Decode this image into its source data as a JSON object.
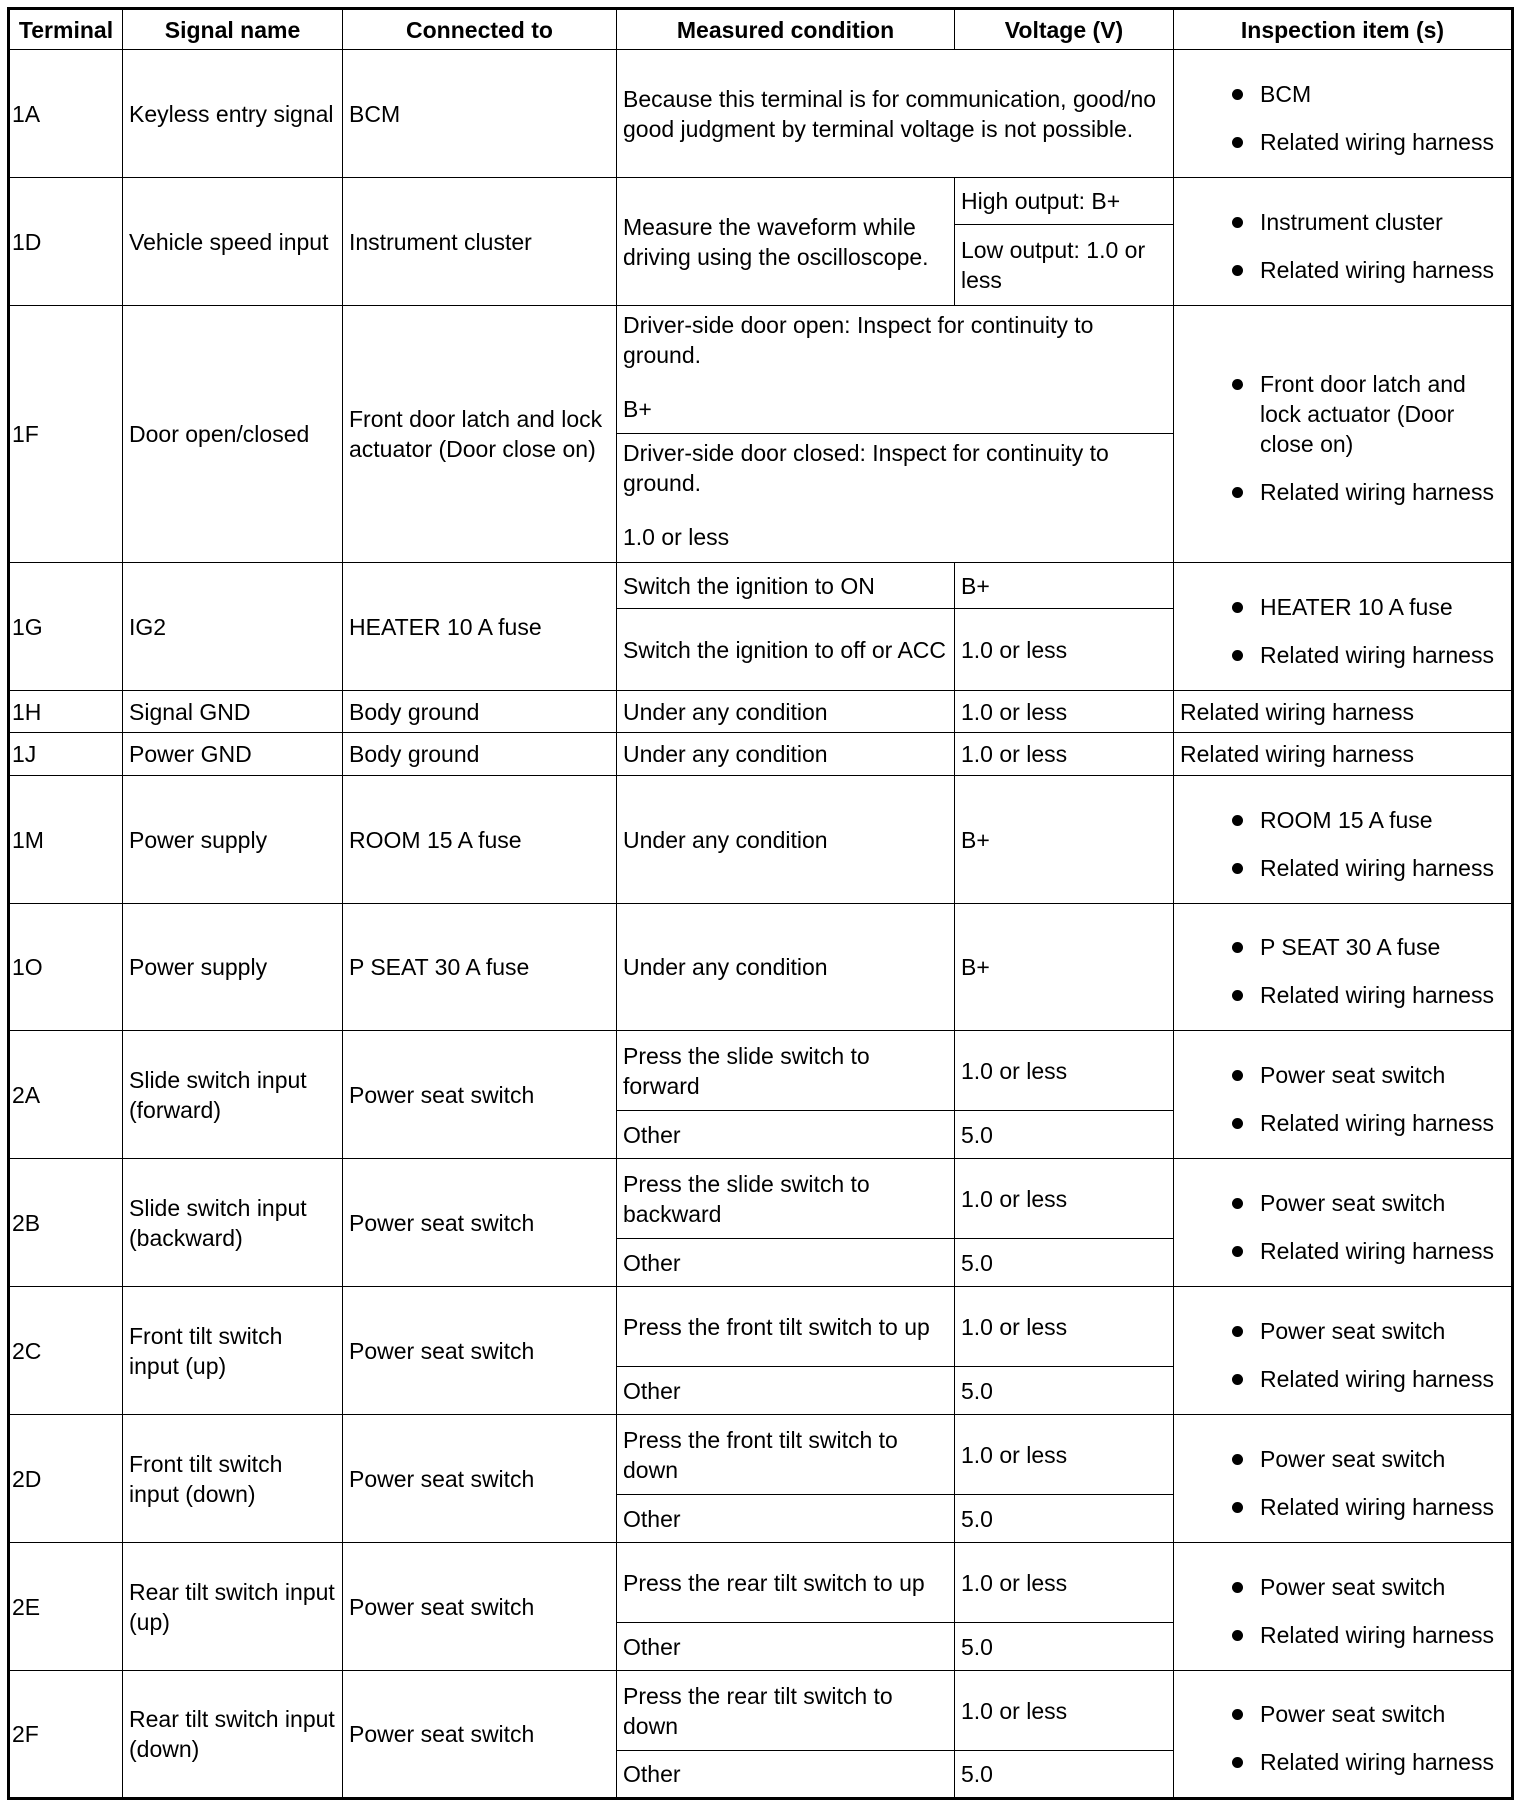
{
  "headers": [
    "Terminal",
    "Signal name",
    "Connected to",
    "Measured condition",
    "Voltage (V)",
    "Inspection item (s)"
  ],
  "rows": [
    {
      "terminal": "1A",
      "signal": "Keyless entry signal",
      "connected": "BCM",
      "note": "Because this terminal is for communication, good/no good judgment by terminal voltage is not possible.",
      "inspection": [
        "BCM",
        "Related wiring harness"
      ]
    },
    {
      "terminal": "1D",
      "signal": "Vehicle speed input",
      "connected": "Instrument cluster",
      "condition": "Measure the waveform while driving using the oscilloscope.",
      "voltages": [
        "High output: B+",
        "Low output: 1.0 or less"
      ],
      "inspection": [
        "Instrument cluster",
        "Related wiring harness"
      ]
    },
    {
      "terminal": "1F",
      "signal": "Door open/closed",
      "connected": "Front door latch and lock actuator (Door close on)",
      "merged_cases": [
        {
          "condition": "Driver-side door open: Inspect for continuity to ground.",
          "value": "B+"
        },
        {
          "condition": "Driver-side door closed: Inspect for continuity to ground.",
          "value": "1.0 or less"
        }
      ],
      "inspection": [
        "Front door latch and lock actuator (Door close on)",
        "Related wiring harness"
      ]
    },
    {
      "terminal": "1G",
      "signal": "IG2",
      "connected": "HEATER 10 A fuse",
      "cases": [
        {
          "condition": "Switch the ignition to ON",
          "voltage": "B+"
        },
        {
          "condition": "Switch the ignition to off or ACC",
          "voltage": "1.0 or less"
        }
      ],
      "inspection": [
        "HEATER 10 A fuse",
        "Related wiring harness"
      ]
    },
    {
      "terminal": "1H",
      "signal": "Signal GND",
      "connected": "Body ground",
      "cases": [
        {
          "condition": "Under any condition",
          "voltage": "1.0 or less"
        }
      ],
      "inspection_text": "Related wiring harness"
    },
    {
      "terminal": "1J",
      "signal": "Power GND",
      "connected": "Body ground",
      "cases": [
        {
          "condition": "Under any condition",
          "voltage": "1.0 or less"
        }
      ],
      "inspection_text": "Related wiring harness"
    },
    {
      "terminal": "1M",
      "signal": "Power supply",
      "connected": "ROOM 15 A fuse",
      "cases": [
        {
          "condition": "Under any condition",
          "voltage": "B+"
        }
      ],
      "inspection": [
        "ROOM 15 A fuse",
        "Related wiring harness"
      ]
    },
    {
      "terminal": "1O",
      "signal": "Power supply",
      "connected": "P SEAT 30 A fuse",
      "cases": [
        {
          "condition": "Under any condition",
          "voltage": "B+"
        }
      ],
      "inspection": [
        "P SEAT 30 A fuse",
        "Related wiring harness"
      ]
    },
    {
      "terminal": "2A",
      "signal": "Slide switch input (forward)",
      "connected": "Power seat switch",
      "cases": [
        {
          "condition": "Press the slide switch to forward",
          "voltage": "1.0 or less"
        },
        {
          "condition": "Other",
          "voltage": "5.0"
        }
      ],
      "inspection": [
        "Power seat switch",
        "Related wiring harness"
      ]
    },
    {
      "terminal": "2B",
      "signal": "Slide switch input (backward)",
      "connected": "Power seat switch",
      "cases": [
        {
          "condition": "Press the slide switch to backward",
          "voltage": "1.0 or less"
        },
        {
          "condition": "Other",
          "voltage": "5.0"
        }
      ],
      "inspection": [
        "Power seat switch",
        "Related wiring harness"
      ]
    },
    {
      "terminal": "2C",
      "signal": "Front tilt switch input (up)",
      "connected": "Power seat switch",
      "cases": [
        {
          "condition": "Press the front tilt switch to up",
          "voltage": "1.0 or less"
        },
        {
          "condition": "Other",
          "voltage": "5.0"
        }
      ],
      "inspection": [
        "Power seat switch",
        "Related wiring harness"
      ]
    },
    {
      "terminal": "2D",
      "signal": "Front tilt switch input (down)",
      "connected": "Power seat switch",
      "cases": [
        {
          "condition": "Press the front tilt switch to down",
          "voltage": "1.0 or less"
        },
        {
          "condition": "Other",
          "voltage": "5.0"
        }
      ],
      "inspection": [
        "Power seat switch",
        "Related wiring harness"
      ]
    },
    {
      "terminal": "2E",
      "signal": "Rear tilt switch input (up)",
      "connected": "Power seat switch",
      "cases": [
        {
          "condition": "Press the rear tilt switch to up",
          "voltage": "1.0 or less"
        },
        {
          "condition": "Other",
          "voltage": "5.0"
        }
      ],
      "inspection": [
        "Power seat switch",
        "Related wiring harness"
      ]
    },
    {
      "terminal": "2F",
      "signal": "Rear tilt switch input (down)",
      "connected": "Power seat switch",
      "cases": [
        {
          "condition": "Press the rear tilt switch to down",
          "voltage": "1.0 or less"
        },
        {
          "condition": "Other",
          "voltage": "5.0"
        }
      ],
      "inspection": [
        "Power seat switch",
        "Related wiring harness"
      ]
    }
  ]
}
